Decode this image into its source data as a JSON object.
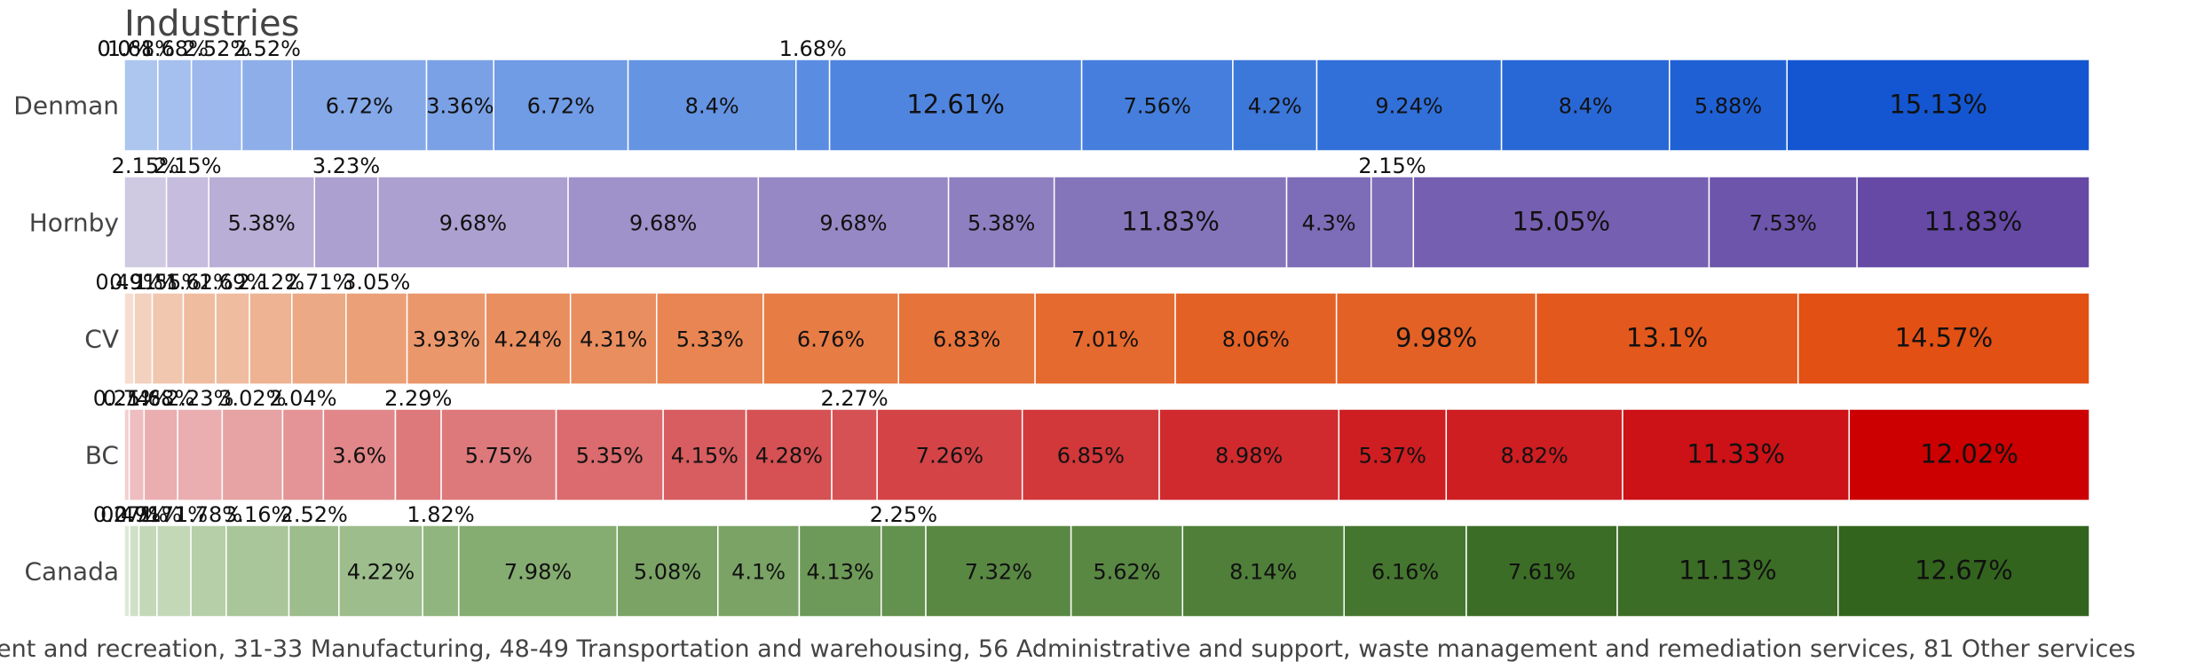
{
  "chart_data": {
    "type": "bar",
    "orientation": "horizontal",
    "stacked": true,
    "normalized": true,
    "title": "Industries",
    "categories": [
      "Denman",
      "Hornby",
      "CV",
      "BC",
      "Canada"
    ],
    "grid": false,
    "legend_text": "ent and recreation, 31-33 Manufacturing, 48-49 Transportation and warehousing, 56 Administrative and support, waste management and remediation services, 81 Other services",
    "rows": [
      {
        "name": "Denman",
        "colors": [
          "#c2d4f0",
          "#b4cbf0",
          "#adc6ef",
          "#a5bfee",
          "#9cb8ed",
          "#8eaee9",
          "#84a8e8",
          "#7aa1e6",
          "#709be5",
          "#6594e3",
          "#5a8ce2",
          "#5085df",
          "#457edc",
          "#3c77da",
          "#3170d9",
          "#2868d6",
          "#1f61d5",
          "#1456d1"
        ],
        "values": [
          0.0,
          0.0,
          1.68,
          1.68,
          2.52,
          2.52,
          6.72,
          3.36,
          6.72,
          8.4,
          1.68,
          12.61,
          7.56,
          4.2,
          9.24,
          8.4,
          5.88,
          15.13
        ],
        "labels": [
          "0.0%",
          "0.0%",
          "1.68%",
          "1.68%",
          "2.52%",
          "2.52%",
          "6.72%",
          "3.36%",
          "6.72%",
          "8.4%",
          "1.68%",
          "12.61%",
          "7.56%",
          "4.2%",
          "9.24%",
          "8.4%",
          "5.88%",
          "15.13%"
        ]
      },
      {
        "name": "Hornby",
        "colors": [
          "#cfc9e2",
          "#c5bcde",
          "#b8aed6",
          "#aba0cf",
          "#9f91c9",
          "#9688c4",
          "#8d7fc0",
          "#8475bb",
          "#7d6cb7",
          "#755fb0",
          "#6d55ab",
          "#6549a5"
        ],
        "values": [
          2.15,
          2.15,
          5.38,
          3.23,
          9.68,
          9.68,
          9.68,
          5.38,
          11.83,
          4.3,
          2.15,
          15.05,
          7.53,
          11.83
        ],
        "labels": [
          "2.15%",
          "2.15%",
          "5.38%",
          "3.23%",
          "9.68%",
          "9.68%",
          "9.68%",
          "5.38%",
          "11.83%",
          "4.3%",
          "2.15%",
          "15.05%",
          "7.53%",
          "11.83%"
        ]
      },
      {
        "name": "CV",
        "colors": [
          "#f6ddd0",
          "#f3d1bf",
          "#f1c7b0",
          "#efbca0",
          "#eeb392",
          "#eca985",
          "#eba078",
          "#ea976b",
          "#e98e5f",
          "#e88552",
          "#e77c45",
          "#e6733a",
          "#e56a2f",
          "#e46126",
          "#e3581d",
          "#e25014"
        ],
        "values": [
          0.49,
          0.91,
          1.55,
          1.62,
          1.69,
          2.12,
          2.71,
          3.05,
          3.93,
          4.24,
          4.31,
          5.33,
          6.76,
          6.83,
          7.01,
          8.06,
          9.98,
          13.1,
          14.57
        ],
        "labels": [
          "0.49%",
          "0.91%",
          "1.55%",
          "1.62%",
          "1.69%",
          "2.12%",
          "2.71%",
          "3.05%",
          "3.93%",
          "4.24%",
          "4.31%",
          "5.33%",
          "6.76%",
          "6.83%",
          "7.01%",
          "8.06%",
          "9.98%",
          "13.1%",
          "14.57%"
        ]
      },
      {
        "name": "BC",
        "colors": [
          "#f2cfd0",
          "#eebdbf",
          "#eaaeb0",
          "#e7a2a3",
          "#e49496",
          "#e18789",
          "#de797b",
          "#db6b6e",
          "#d85d60",
          "#d65153",
          "#d44447",
          "#d2373a",
          "#d02a2e",
          "#ce1e22",
          "#cc1216",
          "#cc0000"
        ],
        "values": [
          0.25,
          0.74,
          1.68,
          2.23,
          3.02,
          2.04,
          3.6,
          2.29,
          5.75,
          5.35,
          4.15,
          4.28,
          2.27,
          7.26,
          6.85,
          8.98,
          5.37,
          8.82,
          11.33,
          12.02
        ],
        "labels": [
          "0.25%",
          "0.74%",
          "1.68%",
          "2.23%",
          "3.02%",
          "2.04%",
          "3.6%",
          "2.29%",
          "5.75%",
          "5.35%",
          "4.15%",
          "4.28%",
          "2.27%",
          "7.26%",
          "6.85%",
          "8.98%",
          "5.37%",
          "8.82%",
          "11.33%",
          "12.02%"
        ]
      },
      {
        "name": "Canada",
        "colors": [
          "#dde9d6",
          "#d0e0c6",
          "#c3d8b7",
          "#b6cfa8",
          "#a9c69a",
          "#9dbd8c",
          "#91b57e",
          "#85ac71",
          "#7aa365",
          "#6e9a59",
          "#63914e",
          "#598843",
          "#4f7f39",
          "#45762f",
          "#3c6d26",
          "#33641d"
        ],
        "values": [
          0.27,
          0.47,
          0.91,
          1.71,
          1.78,
          3.16,
          2.52,
          4.22,
          1.82,
          7.98,
          5.08,
          4.1,
          4.13,
          2.25,
          7.32,
          5.62,
          8.14,
          6.16,
          7.61,
          11.13,
          12.67
        ],
        "labels": [
          "0.27%",
          "0.47%",
          "0.91%",
          "1.71%",
          "1.78%",
          "3.16%",
          "2.52%",
          "4.22%",
          "1.82%",
          "7.98%",
          "5.08%",
          "4.1%",
          "4.13%",
          "2.25%",
          "7.32%",
          "5.62%",
          "8.14%",
          "6.16%",
          "7.61%",
          "11.13%",
          "12.67%"
        ]
      }
    ]
  }
}
